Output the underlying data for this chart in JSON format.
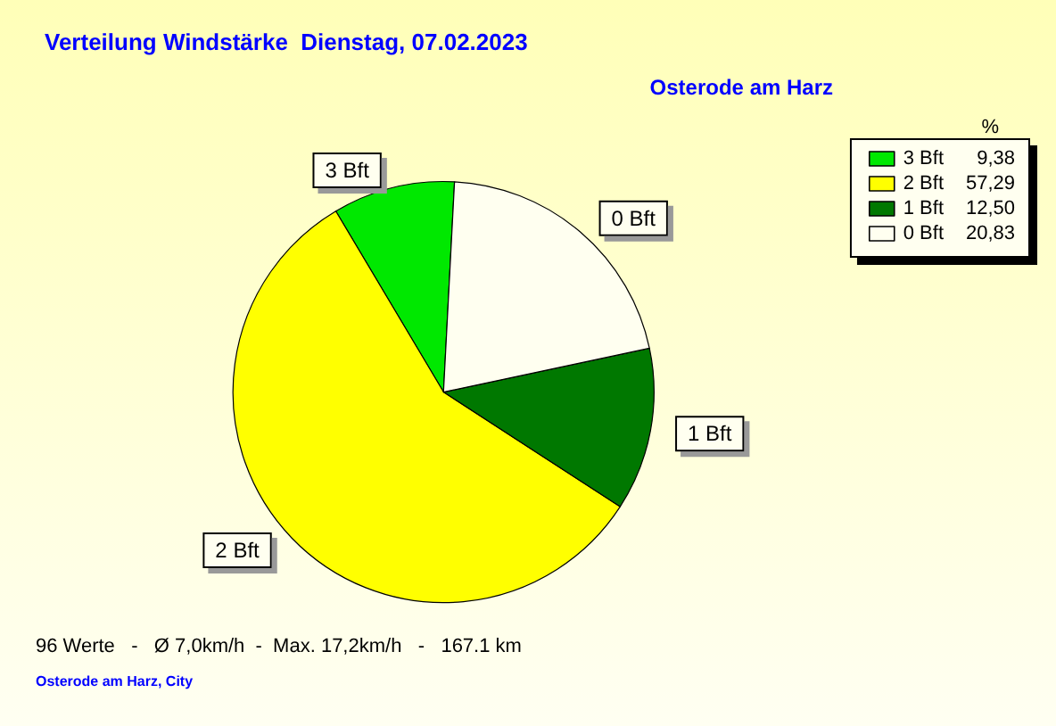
{
  "chart_data": {
    "type": "pie",
    "title": "Verteilung Windstärke  Dienstag, 07.02.2023",
    "subtitle": "Osterode am Harz",
    "categories": [
      "3 Bft",
      "2 Bft",
      "1 Bft",
      "0 Bft"
    ],
    "values": [
      9.38,
      57.29,
      12.5,
      20.83
    ],
    "value_labels": [
      "9,38",
      "57,29",
      "12,50",
      "20,83"
    ],
    "colors": [
      "#00e800",
      "#ffff00",
      "#007800",
      "#fffff0"
    ],
    "legend": "top right",
    "legend_title": "%",
    "annotations": [
      "96 Werte   -   Ø 7,0km/h  -  Max. 17,2km/h   -   167.1 km",
      "Osterode am Harz, City"
    ]
  }
}
